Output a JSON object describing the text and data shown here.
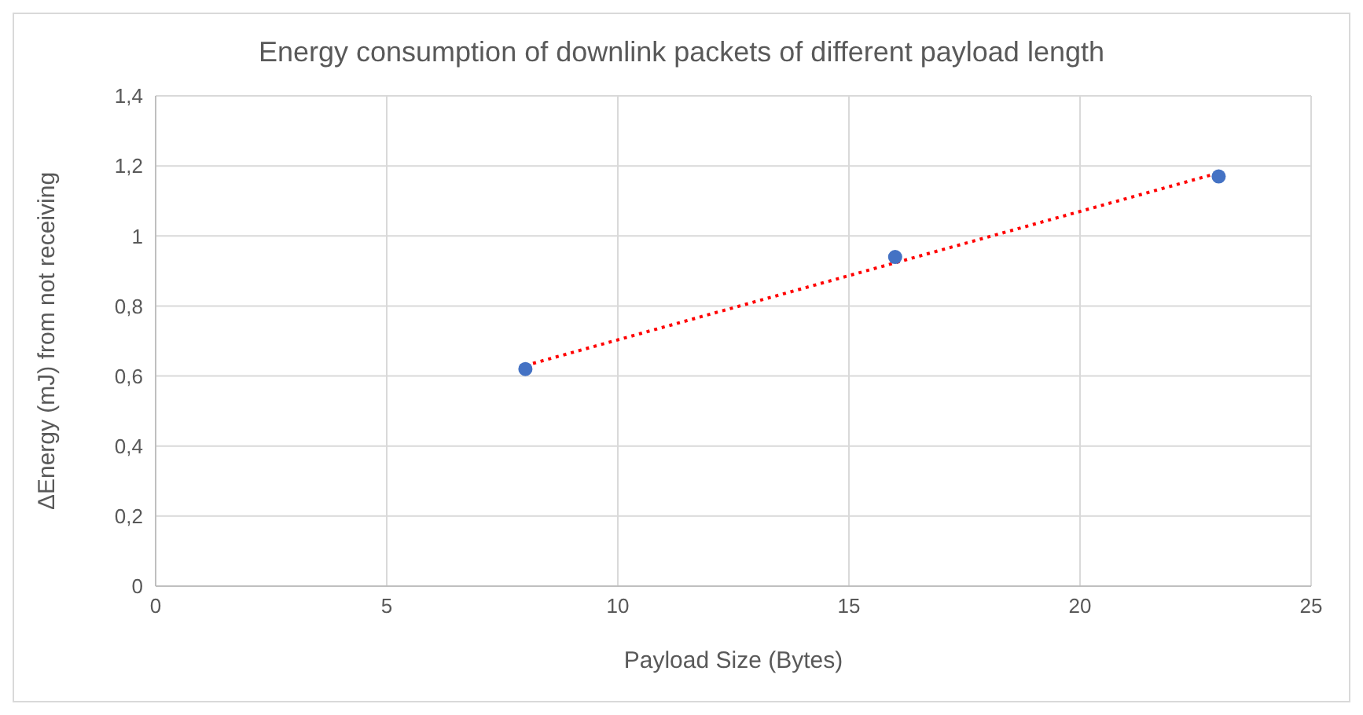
{
  "chart_data": {
    "type": "scatter",
    "title": "Energy consumption of downlink packets of different payload length",
    "xlabel": "Payload Size (Bytes)",
    "ylabel": "ΔEnergy (mJ) from not receiving",
    "series": [
      {
        "color": "#4472c4",
        "x": [
          8,
          16,
          23
        ],
        "values": [
          0.62,
          0.94,
          1.17
        ],
        "marker": "circle"
      },
      {
        "type": "line",
        "color": "#ff0000",
        "x": [
          8,
          23
        ],
        "values": [
          0.63,
          1.18
        ],
        "line_style": "dotted",
        "marker": "none"
      }
    ],
    "xlim": [
      0,
      25
    ],
    "xticks": [
      0,
      5,
      10,
      15,
      20,
      25
    ],
    "ylim": [
      0,
      1.4
    ],
    "yticks": [
      0,
      {
        "value": 0.2,
        "label": "0,2"
      },
      {
        "value": 0.4,
        "label": "0,4"
      },
      {
        "value": 0.6,
        "label": "0,6"
      },
      {
        "value": 0.8,
        "label": "0,8"
      },
      1,
      {
        "value": 1.2,
        "label": "1,2"
      },
      {
        "value": 1.4,
        "label": "1,4"
      }
    ],
    "grid": true
  }
}
